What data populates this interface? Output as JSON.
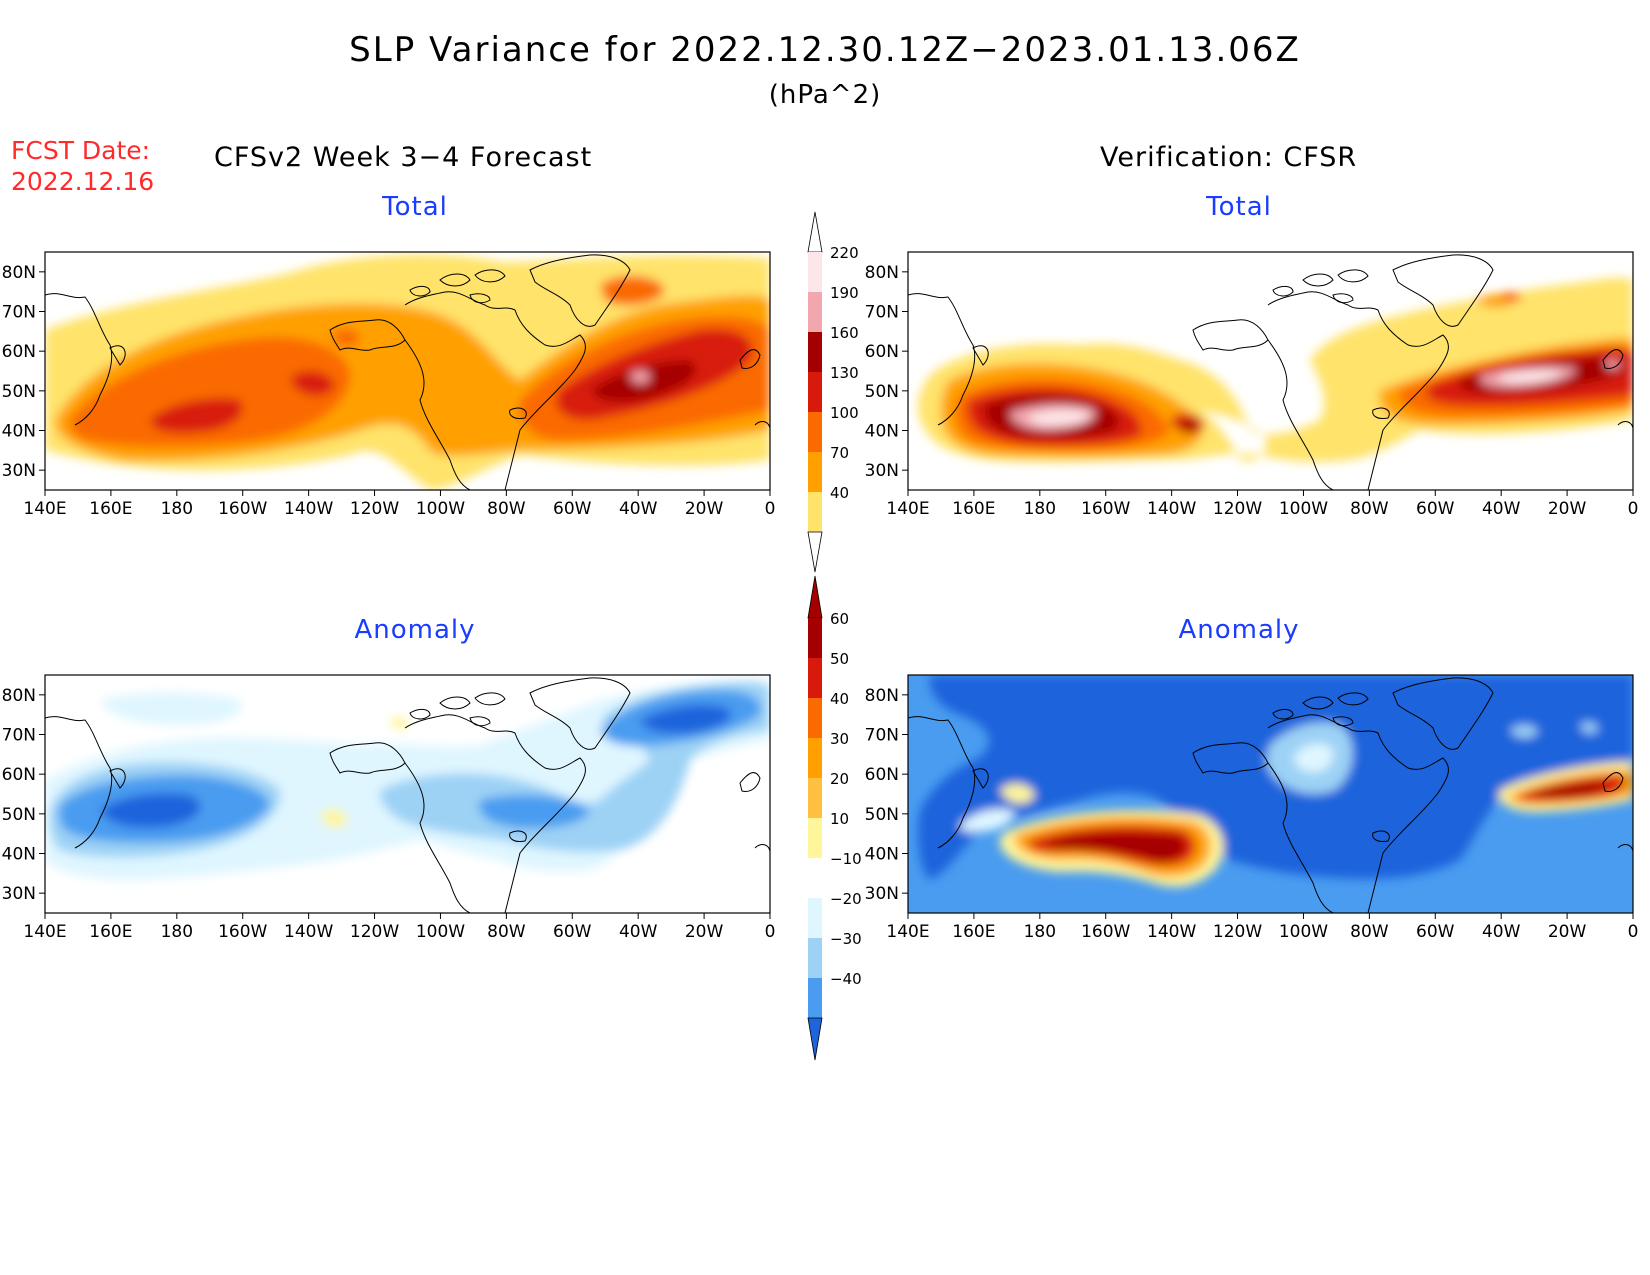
{
  "title": "SLP Variance for 2022.12.30.12Z−2023.01.13.06Z",
  "units": "(hPa^2)",
  "forecast_date_label": "FCST Date:",
  "forecast_date": "2022.12.16",
  "left_heading": "CFSv2 Week 3−4 Forecast",
  "right_heading": "Verification: CFSR",
  "panels": {
    "fcst_total": {
      "title": "Total"
    },
    "fcst_anom": {
      "title": "Anomaly"
    },
    "verif_total": {
      "title": "Total"
    },
    "verif_anom": {
      "title": "Anomaly"
    }
  },
  "map": {
    "lon_ticks": [
      "140E",
      "160E",
      "180",
      "160W",
      "140W",
      "120W",
      "100W",
      "80W",
      "60W",
      "40W",
      "20W",
      "0"
    ],
    "lat_ticks": [
      "80N",
      "70N",
      "60N",
      "50N",
      "40N",
      "30N"
    ]
  },
  "colorbars": {
    "total": {
      "labels": [
        "220",
        "190",
        "160",
        "130",
        "100",
        "70",
        "40"
      ],
      "colors": [
        "#fde6e9",
        "#f2a6ad",
        "#a50000",
        "#d81a0c",
        "#fa6a00",
        "#ffa000",
        "#ffe36a"
      ]
    },
    "anomaly": {
      "labels": [
        "60",
        "50",
        "40",
        "30",
        "20",
        "10",
        "−10",
        "−20",
        "−30",
        "−40"
      ],
      "colors": [
        "#a50000",
        "#d81a0c",
        "#fa6a00",
        "#ffa000",
        "#ffc040",
        "#fff59a",
        "#ffffff",
        "#dff6ff",
        "#9dd2f5",
        "#4a9cf0",
        "#1e64dc"
      ]
    }
  }
}
